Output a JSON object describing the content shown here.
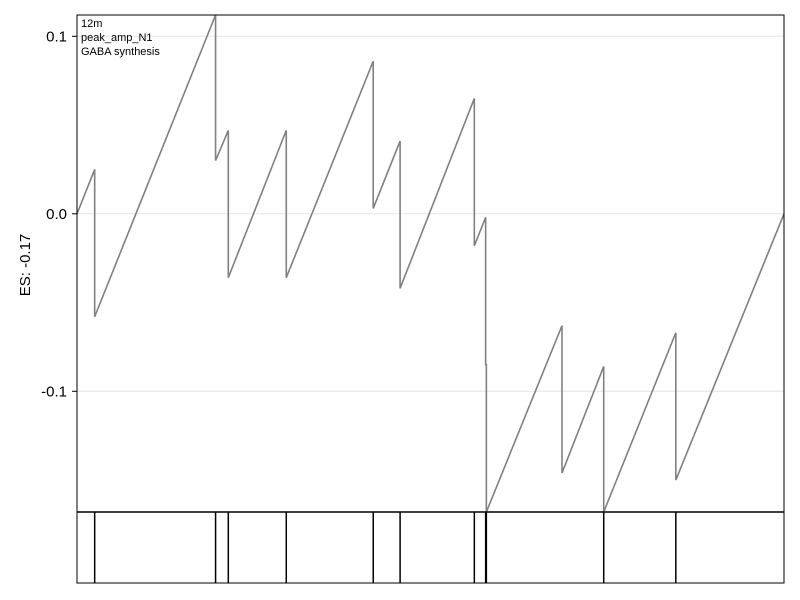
{
  "chart_data": {
    "type": "line",
    "title": "",
    "xlabel": "",
    "ylabel": "ES: -0.17",
    "annotations": [
      "12m",
      "peak_amp_N1",
      "GABA synthesis"
    ],
    "xlim": [
      0,
      1
    ],
    "ylim": [
      -0.168,
      0.112
    ],
    "yticks": [
      0.1,
      0.0,
      -0.1
    ],
    "ytick_labels": [
      "0.1",
      "0.0",
      "-0.1"
    ],
    "grid": true,
    "colors": {
      "line": "#808080",
      "grid": "#e5e5e5",
      "axis": "#000000",
      "rug": "#000000"
    },
    "series": [
      {
        "x": [
          0,
          0.025,
          0.025,
          0.196,
          0.196,
          0.214,
          0.214,
          0.296,
          0.296,
          0.419,
          0.419,
          0.457,
          0.457,
          0.562,
          0.562,
          0.578,
          0.578,
          0.579,
          0.579,
          0.686,
          0.686,
          0.745,
          0.745,
          0.847,
          0.847,
          1.0
        ],
        "y": [
          0,
          0.025,
          -0.058,
          0.112,
          0.03,
          0.047,
          -0.036,
          0.047,
          -0.036,
          0.086,
          0.003,
          0.041,
          -0.042,
          0.065,
          -0.018,
          -0.002,
          -0.085,
          -0.085,
          -0.168,
          -0.063,
          -0.146,
          -0.086,
          -0.168,
          -0.067,
          -0.15,
          0
        ]
      }
    ],
    "rug_positions": [
      0.025,
      0.196,
      0.214,
      0.296,
      0.419,
      0.457,
      0.562,
      0.578,
      0.579,
      0.745,
      0.847
    ]
  }
}
